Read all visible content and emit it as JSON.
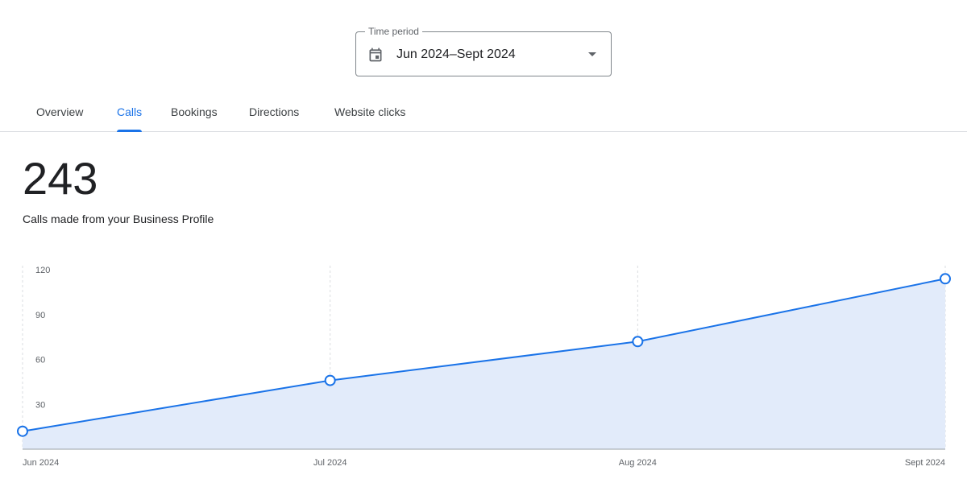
{
  "time_period": {
    "label": "Time period",
    "value": "Jun 2024–Sept 2024",
    "icon": "calendar-icon"
  },
  "tabs": [
    {
      "label": "Overview",
      "active": false
    },
    {
      "label": "Calls",
      "active": true
    },
    {
      "label": "Bookings",
      "active": false
    },
    {
      "label": "Directions",
      "active": false
    },
    {
      "label": "Website clicks",
      "active": false
    }
  ],
  "metric": {
    "value": "243",
    "caption": "Calls made from your Business Profile"
  },
  "colors": {
    "accent": "#1a73e8",
    "area_fill": "#e2ebfa",
    "grid": "#dadce0"
  },
  "chart_data": {
    "type": "area",
    "categories": [
      "Jun 2024",
      "Jul 2024",
      "Aug 2024",
      "Sept 2024"
    ],
    "values": [
      12,
      46,
      72,
      114
    ],
    "yticks": [
      30,
      60,
      90,
      120
    ],
    "ylim": [
      0,
      126
    ],
    "grid": true,
    "legend": "none"
  }
}
